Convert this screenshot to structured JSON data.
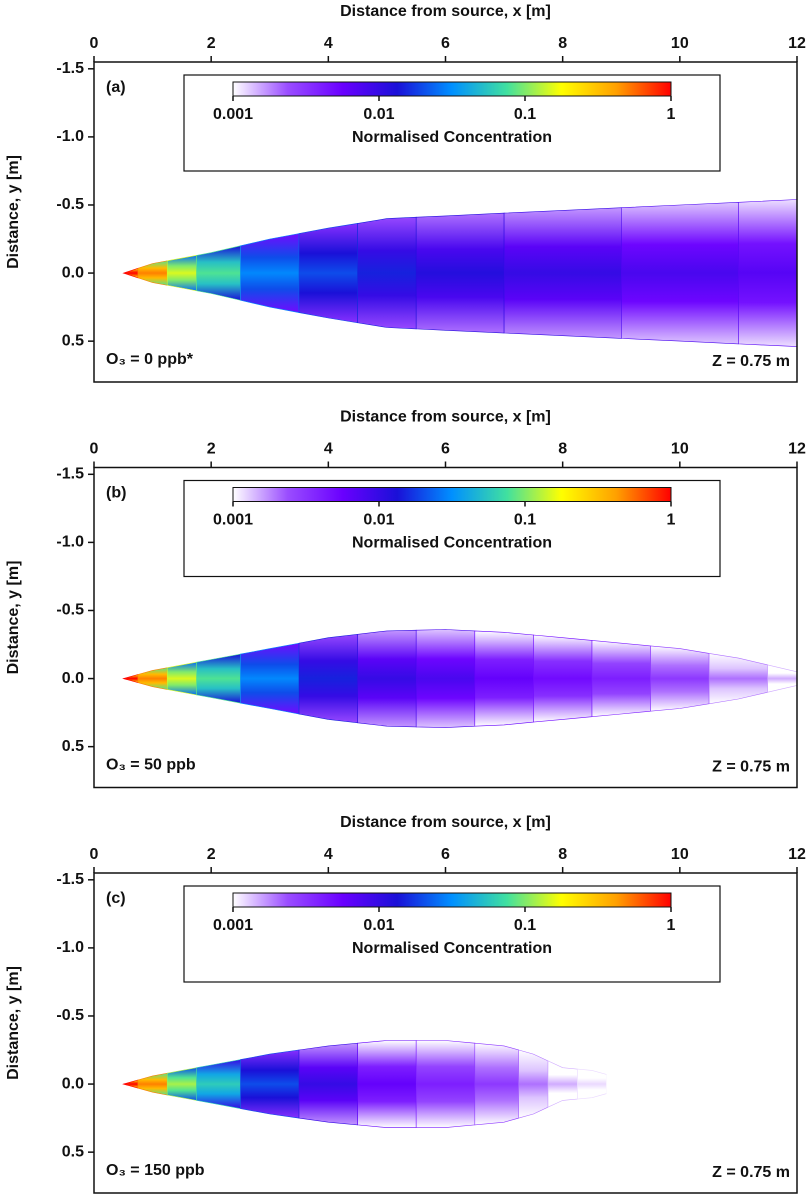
{
  "chart_data": [
    {
      "type": "heatmap",
      "xlabel": "Distance from source, x [m]",
      "ylabel": "Distance, y [m]",
      "panel_label": "(a)",
      "annotation": "O₃ = 0 ppb*",
      "height_label": "Z = 0.75 m",
      "xlim": [
        0,
        12
      ],
      "xticks": [
        0,
        2,
        4,
        6,
        8,
        10,
        12
      ],
      "ylim": [
        -1.55,
        0.8
      ],
      "yticks": [
        -1.5,
        {
          "value": -1,
          "label": "-1.0"
        },
        -0.5,
        {
          "value": 0,
          "label": "0.0"
        },
        0.5
      ],
      "plume": {
        "x": [
          0.5,
          1,
          1.5,
          2,
          3,
          4,
          5,
          6,
          8,
          10,
          12
        ],
        "half_width": [
          0,
          0.07,
          0.11,
          0.15,
          0.25,
          0.33,
          0.4,
          0.42,
          0.46,
          0.5,
          0.54
        ],
        "concentration": [
          1,
          0.5,
          0.15,
          0.08,
          0.03,
          0.02,
          0.015,
          0.012,
          0.01,
          0.008,
          0.007
        ]
      },
      "colorbar": {
        "label": "Normalised Concentration",
        "lim": [
          0.001,
          1
        ],
        "ticks": [
          0.001,
          0.01,
          0.1,
          1
        ],
        "log": true,
        "colors": [
          "#ffffff",
          "#9a4dff",
          "#6a00ff",
          "#1a10d8",
          "#0090ff",
          "#40e0a0",
          "#ffff00",
          "#ffa000",
          "#ff0000"
        ]
      }
    },
    {
      "type": "heatmap",
      "xlabel": "Distance from source, x [m]",
      "ylabel": "Distance, y [m]",
      "panel_label": "(b)",
      "annotation": "O₃ = 50 ppb",
      "height_label": "Z = 0.75 m",
      "xlim": [
        0,
        12
      ],
      "xticks": [
        0,
        2,
        4,
        6,
        8,
        10,
        12
      ],
      "ylim": [
        -1.55,
        0.8
      ],
      "yticks": [
        -1.5,
        {
          "value": -1,
          "label": "-1.0"
        },
        -0.5,
        {
          "value": 0,
          "label": "0.0"
        },
        0.5
      ],
      "plume": {
        "x": [
          0.5,
          1,
          1.5,
          2,
          3,
          4,
          5,
          6,
          7,
          8,
          9,
          10,
          11,
          12
        ],
        "half_width": [
          0,
          0.06,
          0.1,
          0.14,
          0.22,
          0.3,
          0.35,
          0.36,
          0.34,
          0.3,
          0.26,
          0.22,
          0.15,
          0.05
        ],
        "concentration": [
          1,
          0.5,
          0.15,
          0.08,
          0.03,
          0.015,
          0.01,
          0.008,
          0.006,
          0.005,
          0.004,
          0.003,
          0.002,
          0.0015
        ]
      },
      "colorbar": {
        "label": "Normalised Concentration",
        "lim": [
          0.001,
          1
        ],
        "ticks": [
          0.001,
          0.01,
          0.1,
          1
        ],
        "log": true,
        "colors": [
          "#ffffff",
          "#9a4dff",
          "#6a00ff",
          "#1a10d8",
          "#0090ff",
          "#40e0a0",
          "#ffff00",
          "#ffa000",
          "#ff0000"
        ]
      }
    },
    {
      "type": "heatmap",
      "xlabel": "Distance from source, x [m]",
      "ylabel": "Distance, y [m]",
      "panel_label": "(c)",
      "annotation": "O₃ = 150 ppb",
      "height_label": "Z = 0.75 m",
      "xlim": [
        0,
        12
      ],
      "xticks": [
        0,
        2,
        4,
        6,
        8,
        10,
        12
      ],
      "ylim": [
        -1.55,
        0.8
      ],
      "yticks": [
        -1.5,
        {
          "value": -1,
          "label": "-1.0"
        },
        -0.5,
        {
          "value": 0,
          "label": "0.0"
        },
        0.5
      ],
      "plume": {
        "x": [
          0.5,
          1,
          1.5,
          2,
          3,
          4,
          5,
          6,
          7,
          7.5,
          8,
          8.5,
          9
        ],
        "half_width": [
          0,
          0.06,
          0.1,
          0.14,
          0.22,
          0.28,
          0.32,
          0.32,
          0.28,
          0.22,
          0.12,
          0.1,
          0.04
        ],
        "concentration": [
          1,
          0.5,
          0.12,
          0.06,
          0.02,
          0.01,
          0.006,
          0.004,
          0.003,
          0.002,
          0.0015,
          0.0012,
          0.001
        ]
      },
      "colorbar": {
        "label": "Normalised Concentration",
        "lim": [
          0.001,
          1
        ],
        "ticks": [
          0.001,
          0.01,
          0.1,
          1
        ],
        "log": true,
        "colors": [
          "#ffffff",
          "#9a4dff",
          "#6a00ff",
          "#1a10d8",
          "#0090ff",
          "#40e0a0",
          "#ffff00",
          "#ffa000",
          "#ff0000"
        ]
      }
    }
  ]
}
